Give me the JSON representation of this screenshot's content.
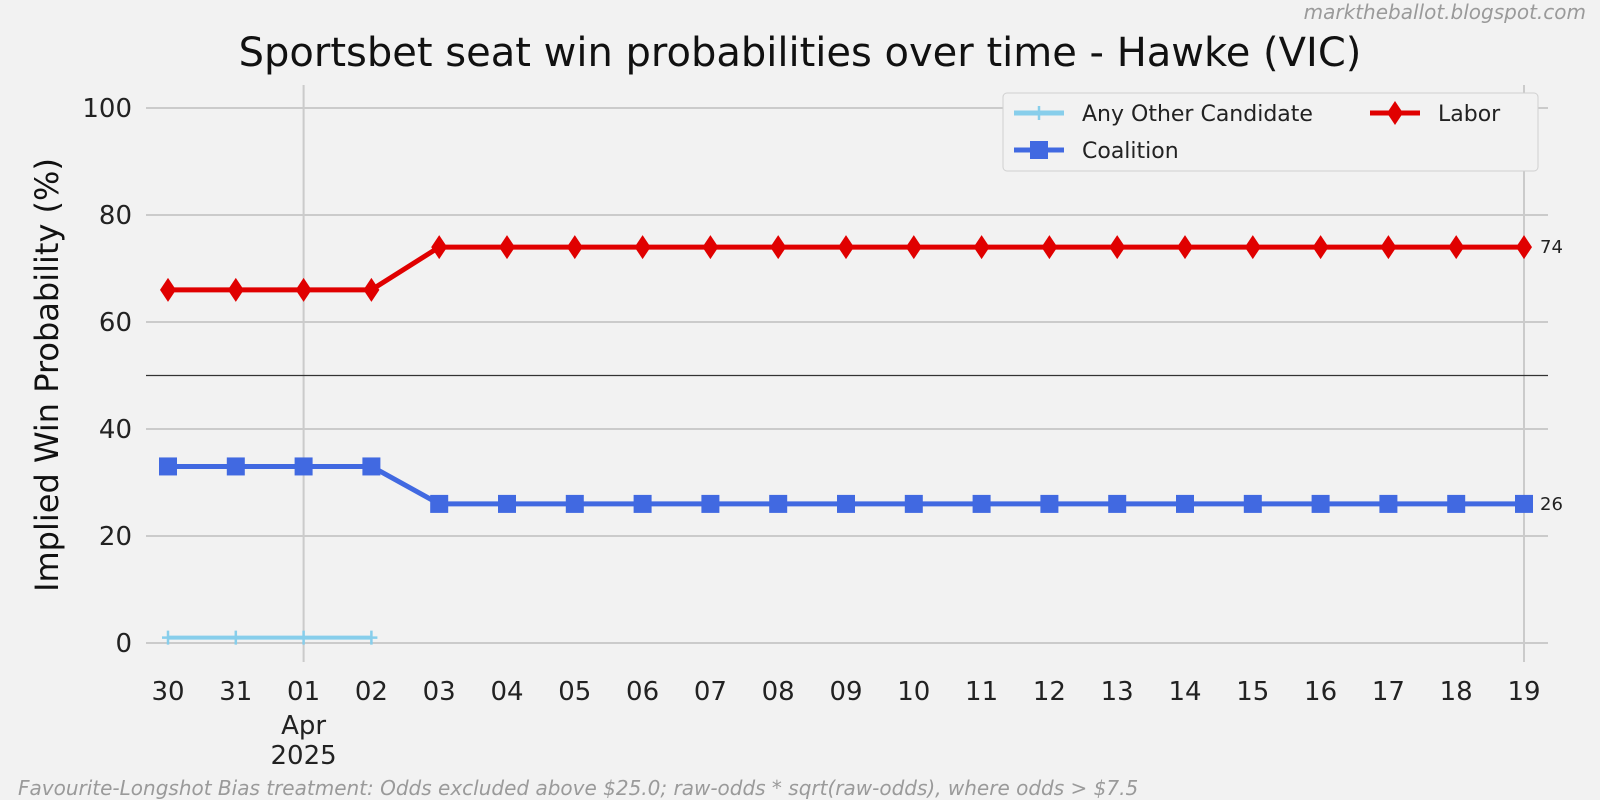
{
  "watermark": "marktheballot.blogspot.com",
  "footnote": "Favourite-Longshot Bias treatment: Odds excluded above $25.0; raw-odds * sqrt(raw-odds), where odds > $7.5",
  "chart_data": {
    "type": "line",
    "title": "Sportsbet seat win probabilities over time - Hawke (VIC)",
    "xlabel": "",
    "ylabel": "Implied Win Probability (%)",
    "ylim": [
      0,
      100
    ],
    "yticks": [
      0,
      20,
      40,
      60,
      80,
      100
    ],
    "x": [
      "2025-03-30",
      "2025-03-31",
      "2025-04-01",
      "2025-04-02",
      "2025-04-03",
      "2025-04-04",
      "2025-04-05",
      "2025-04-06",
      "2025-04-07",
      "2025-04-08",
      "2025-04-09",
      "2025-04-10",
      "2025-04-11",
      "2025-04-12",
      "2025-04-13",
      "2025-04-14",
      "2025-04-15",
      "2025-04-16",
      "2025-04-17",
      "2025-04-18",
      "2025-04-19"
    ],
    "xtick_labels": [
      "30",
      "31",
      "01",
      "02",
      "03",
      "04",
      "05",
      "06",
      "07",
      "08",
      "09",
      "10",
      "11",
      "12",
      "13",
      "14",
      "15",
      "16",
      "17",
      "18",
      "19"
    ],
    "xtick_sublabel": {
      "month": "Apr",
      "year": "2025"
    },
    "reference_line": 50,
    "grid": true,
    "legend_position": "top-right",
    "series": [
      {
        "name": "Any Other Candidate",
        "color": "#87ceeb",
        "marker": "plus",
        "values": [
          1,
          1,
          1,
          1,
          null,
          null,
          null,
          null,
          null,
          null,
          null,
          null,
          null,
          null,
          null,
          null,
          null,
          null,
          null,
          null,
          null
        ]
      },
      {
        "name": "Coalition",
        "color": "#4169e1",
        "marker": "square",
        "values": [
          33,
          33,
          33,
          33,
          26,
          26,
          26,
          26,
          26,
          26,
          26,
          26,
          26,
          26,
          26,
          26,
          26,
          26,
          26,
          26,
          26
        ]
      },
      {
        "name": "Labor",
        "color": "#e00000",
        "marker": "diamond",
        "values": [
          66,
          66,
          66,
          66,
          74,
          74,
          74,
          74,
          74,
          74,
          74,
          74,
          74,
          74,
          74,
          74,
          74,
          74,
          74,
          74,
          74
        ]
      }
    ],
    "end_labels": [
      {
        "series": "Labor",
        "text": "74"
      },
      {
        "series": "Coalition",
        "text": "26"
      }
    ]
  }
}
